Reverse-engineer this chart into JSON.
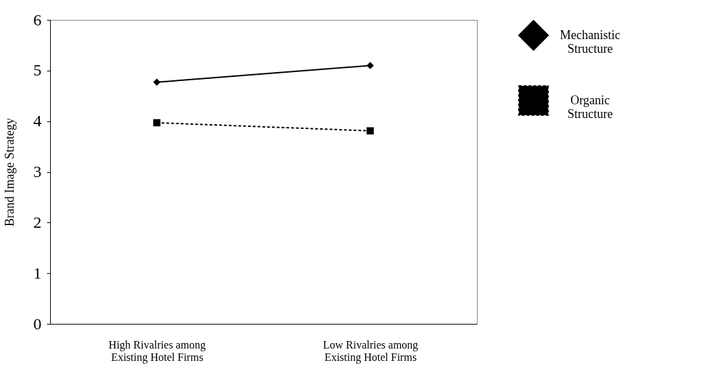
{
  "chart_data": {
    "type": "line",
    "ylabel": "Brand Image Strategy",
    "categories": [
      "High Rivalries among Existing Hotel Firms",
      "Low Rivalries among Existing Hotel Firms"
    ],
    "series": [
      {
        "name": "Mechanistic Structure",
        "color": "#000000",
        "values": [
          4.77,
          5.1
        ],
        "marker": "diamond",
        "line_style": "solid"
      },
      {
        "name": "Organic Structure",
        "color": "#000000",
        "values": [
          3.97,
          3.81
        ],
        "marker": "square",
        "line_style": "dashed"
      }
    ],
    "ylim": [
      0,
      6
    ],
    "yticks": [
      0,
      1,
      2,
      3,
      4,
      5,
      6
    ],
    "grid": false,
    "legend": "right"
  }
}
